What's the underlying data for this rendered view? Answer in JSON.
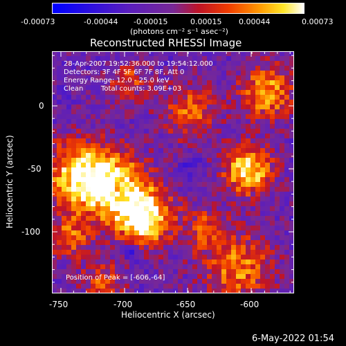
{
  "colorbar": {
    "ticks": [
      "-0.00073",
      "-0.00044",
      "-0.00015",
      "0.00015",
      "0.00044",
      "0.00073"
    ],
    "units": "(photons cm⁻² s⁻¹ asec⁻²)"
  },
  "title": "Reconstructed RHESSI Image",
  "info": {
    "line1": "28-Apr-2007 19:52:36.000 to 19:54:12.000",
    "line2": "Detectors: 3F 4F 5F 6F 7F 8F, Att 0",
    "line3": "Energy Range: 12.0 - 25.0 keV",
    "line4_method": "Clean",
    "line4_counts": "Total counts: 3.09E+03",
    "peak": "Position of Peak = [-606,-64]"
  },
  "axes": {
    "xlabel": "Heliocentric X (arcsec)",
    "ylabel": "Heliocentric Y (arcsec)",
    "xticks": [
      "-750",
      "-700",
      "-650",
      "-600"
    ],
    "yticks": [
      "0",
      "-50",
      "-100"
    ]
  },
  "timestamp": "6-May-2022 01:54",
  "colors": {
    "cmap_low": "#0000ff",
    "cmap_mid": "#7b2aa0",
    "cmap_high": "#ffffff"
  }
}
